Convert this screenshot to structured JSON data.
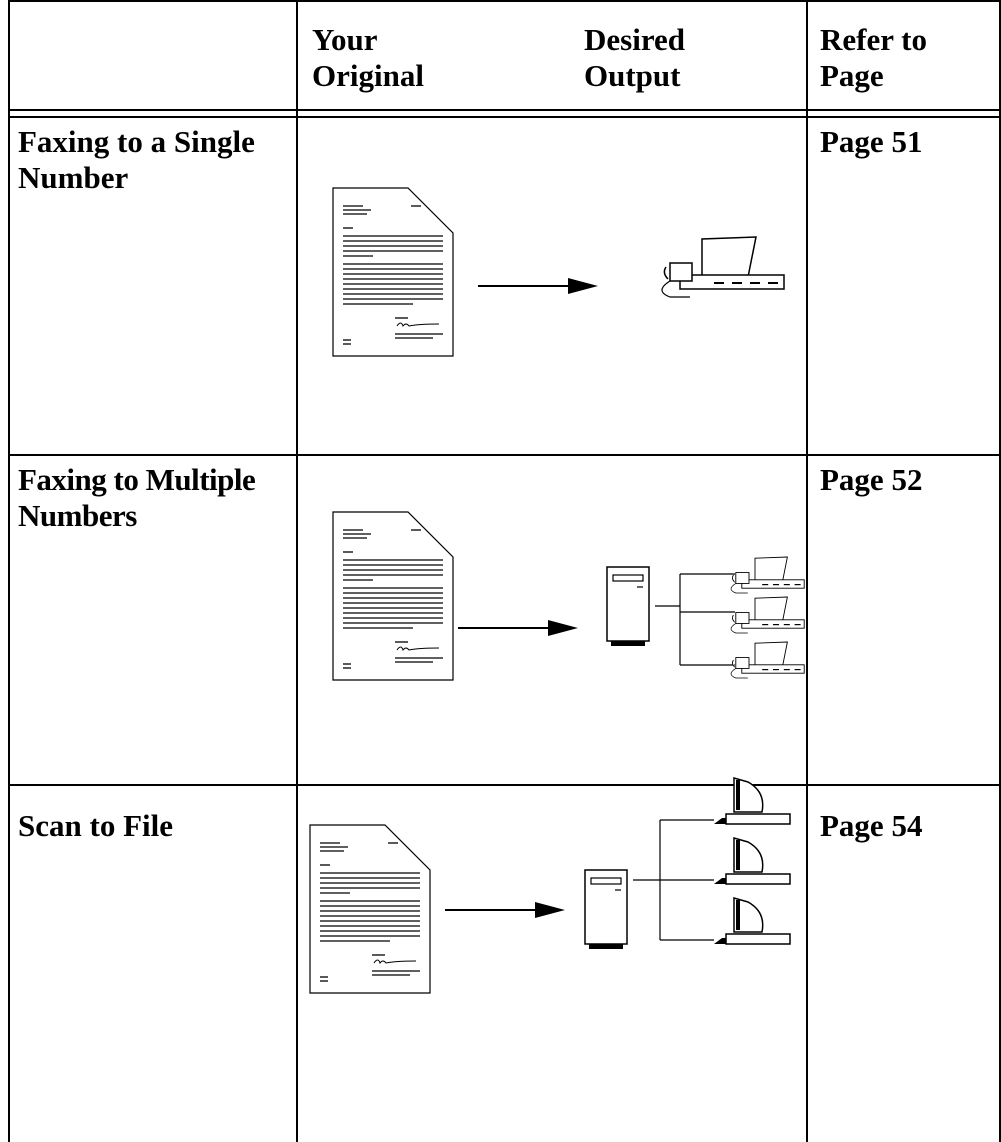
{
  "table": {
    "header": [
      [
        "Your",
        "Original"
      ],
      [
        "Desired",
        "Output"
      ],
      [
        "Refer to",
        "Page"
      ]
    ],
    "rows": [
      {
        "task": "Faxing to a Single Number",
        "page": "Page 51"
      },
      {
        "task": "Faxing to Multiple Numbers",
        "page": "Page 52"
      },
      {
        "task": "Scan to File",
        "page": "Page 54"
      }
    ]
  }
}
